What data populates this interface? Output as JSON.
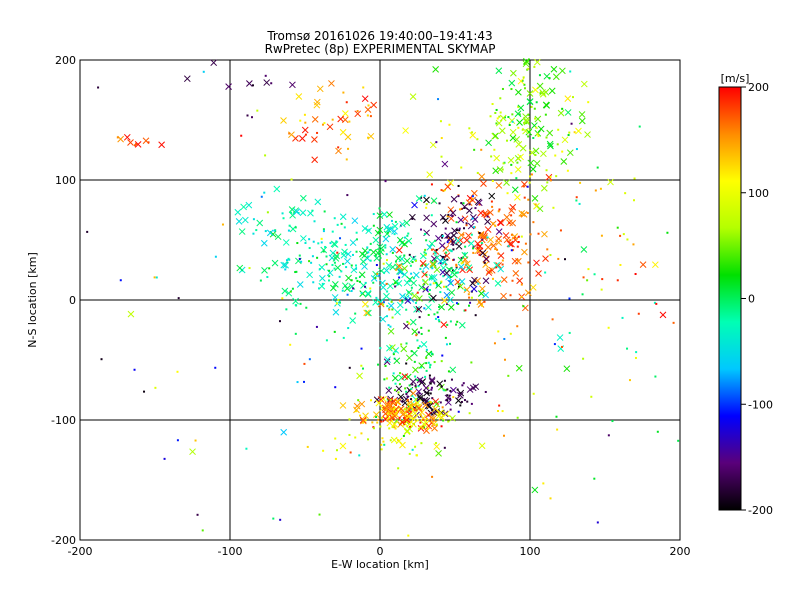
{
  "chart_data": {
    "type": "scatter",
    "title": "Tromsø 20161026 19:40:00–19:41:43",
    "subtitle": "RwPretec (8p) EXPERIMENTAL SKYMAP",
    "xlabel": "E-W location [km]",
    "ylabel": "N-S location [km]",
    "xlim": [
      -200,
      200
    ],
    "ylim": [
      -200,
      200
    ],
    "xticks": [
      -200,
      -100,
      0,
      100,
      200
    ],
    "yticks": [
      -200,
      -100,
      0,
      100,
      200
    ],
    "grid": true,
    "colorbar": {
      "label": "[m/s]",
      "min": -200,
      "max": 200,
      "ticks": [
        200,
        100,
        0,
        -100,
        -200
      ],
      "colors": [
        "#000000",
        "#5a007a",
        "#0000ff",
        "#00c8ff",
        "#00ffb4",
        "#00e000",
        "#b4ff00",
        "#ffff00",
        "#ff8c00",
        "#ff0000"
      ]
    },
    "marker_legend": {
      "cross": "large × marker",
      "dot": "small point marker"
    },
    "clusters": [
      {
        "name": "upper-left group",
        "cx": -165,
        "cy": 133,
        "sx": 7,
        "sy": 5,
        "n": 10,
        "vmin": 150,
        "vmax": 200,
        "cross": 0.8
      },
      {
        "name": "north red/orange",
        "cx": -30,
        "cy": 150,
        "sx": 18,
        "sy": 18,
        "n": 45,
        "vmin": 100,
        "vmax": 200,
        "cross": 0.5
      },
      {
        "name": "north black",
        "cx": -80,
        "cy": 175,
        "sx": 12,
        "sy": 20,
        "n": 12,
        "vmin": -200,
        "vmax": -160,
        "cross": 0.6
      },
      {
        "name": "north-east green",
        "cx": 100,
        "cy": 150,
        "sx": 15,
        "sy": 30,
        "n": 120,
        "vmin": 0,
        "vmax": 80,
        "cross": 0.55
      },
      {
        "name": "north-east yellow",
        "cx": 80,
        "cy": 140,
        "sx": 25,
        "sy": 30,
        "n": 50,
        "vmin": 60,
        "vmax": 120,
        "cross": 0.35
      },
      {
        "name": "central-east red",
        "cx": 75,
        "cy": 50,
        "sx": 18,
        "sy": 25,
        "n": 150,
        "vmin": 140,
        "vmax": 200,
        "cross": 0.6
      },
      {
        "name": "central black",
        "cx": 50,
        "cy": 55,
        "sx": 12,
        "sy": 20,
        "n": 80,
        "vmin": -200,
        "vmax": -150,
        "cross": 0.5
      },
      {
        "name": "central cyan band",
        "cx": 0,
        "cy": 30,
        "sx": 35,
        "sy": 25,
        "n": 320,
        "vmin": -60,
        "vmax": 20,
        "cross": 0.45
      },
      {
        "name": "west cyan",
        "cx": -60,
        "cy": 60,
        "sx": 15,
        "sy": 15,
        "n": 40,
        "vmin": -60,
        "vmax": 0,
        "cross": 0.4
      },
      {
        "name": "central mixed",
        "cx": 30,
        "cy": 10,
        "sx": 25,
        "sy": 30,
        "n": 120,
        "vmin": -200,
        "vmax": 200,
        "cross": 0.3
      },
      {
        "name": "south cyan/green",
        "cx": 25,
        "cy": -60,
        "sx": 15,
        "sy": 30,
        "n": 100,
        "vmin": -40,
        "vmax": 60,
        "cross": 0.35
      },
      {
        "name": "south black",
        "cx": 35,
        "cy": -80,
        "sx": 15,
        "sy": 8,
        "n": 90,
        "vmin": -200,
        "vmax": -150,
        "cross": 0.5
      },
      {
        "name": "south orange/red",
        "cx": 15,
        "cy": -95,
        "sx": 15,
        "sy": 7,
        "n": 130,
        "vmin": 100,
        "vmax": 200,
        "cross": 0.6
      },
      {
        "name": "south yellow",
        "cx": 10,
        "cy": -110,
        "sx": 25,
        "sy": 15,
        "n": 60,
        "vmin": 60,
        "vmax": 130,
        "cross": 0.2
      },
      {
        "name": "eastern sparse",
        "cx": 140,
        "cy": 20,
        "sx": 40,
        "sy": 70,
        "n": 80,
        "vmin": -50,
        "vmax": 200,
        "cross": 0.1
      },
      {
        "name": "background scatter",
        "cx": 0,
        "cy": 0,
        "sx": 120,
        "sy": 120,
        "n": 140,
        "vmin": -200,
        "vmax": 200,
        "cross": 0.08
      }
    ]
  }
}
